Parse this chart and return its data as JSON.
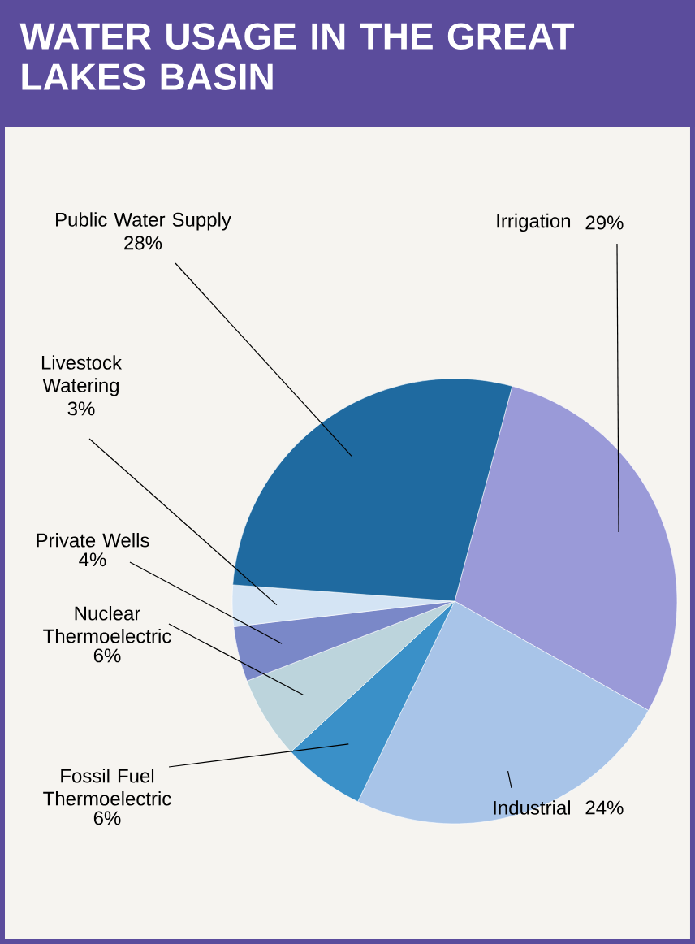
{
  "chart_data": {
    "type": "pie",
    "title": "WATER USAGE IN THE GREAT LAKES BASIN",
    "categories": [
      "Irrigation",
      "Industrial",
      "Fossil Fuel Thermoelectric",
      "Nuclear Thermoelectric",
      "Private Wells",
      "Livestock Watering",
      "Public Water Supply"
    ],
    "values": [
      29,
      24,
      6,
      6,
      4,
      3,
      28
    ],
    "colors": [
      "#9a9ad8",
      "#a8c4e8",
      "#3a90c8",
      "#bcd4dc",
      "#7a88c8",
      "#d4e4f4",
      "#1f6aa0"
    ],
    "value_labels": [
      "29%",
      "24%",
      "6%",
      "6%",
      "4%",
      "3%",
      "28%"
    ]
  }
}
